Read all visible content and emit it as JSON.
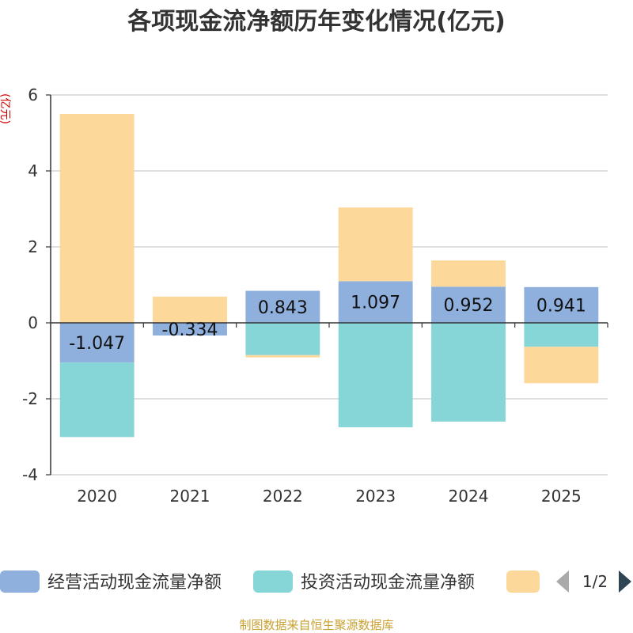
{
  "title": "各项现金流净额历年变化情况(亿元)",
  "footer": "制图数据来自恒生聚源数据库",
  "legend": {
    "page_indicator": "1/2",
    "prev_arrow_color": "#aaaaaa",
    "next_arrow_color": "#2f4554"
  },
  "colors": {
    "axis": "#333333",
    "grid": "#cccccc",
    "unit_label": "#d00000",
    "footer": "#c9a032"
  },
  "chart_data": {
    "type": "bar",
    "stacked": true,
    "title": "各项现金流净额历年变化情况(亿元)",
    "xlabel": "",
    "ylabel": "(亿元)",
    "ylim": [
      -4,
      6
    ],
    "yticks": [
      -4,
      -2,
      0,
      2,
      4,
      6
    ],
    "grid": true,
    "legend_position": "bottom",
    "categories": [
      "2020",
      "2021",
      "2022",
      "2023",
      "2024",
      "2025"
    ],
    "series": [
      {
        "name": "经营活动现金流量净额",
        "color": "#8fb0dd",
        "show_labels": true,
        "values": [
          -1.047,
          -0.334,
          0.843,
          1.097,
          0.952,
          0.941
        ]
      },
      {
        "name": "投资活动现金流量净额",
        "color": "#86d5d7",
        "show_labels": false,
        "values": [
          -1.96,
          0,
          -0.85,
          -2.75,
          -2.6,
          -0.63
        ]
      },
      {
        "color": "#fdd89b",
        "show_labels": false,
        "values": [
          5.5,
          0.69,
          -0.06,
          1.94,
          0.69,
          -0.96
        ]
      }
    ]
  }
}
